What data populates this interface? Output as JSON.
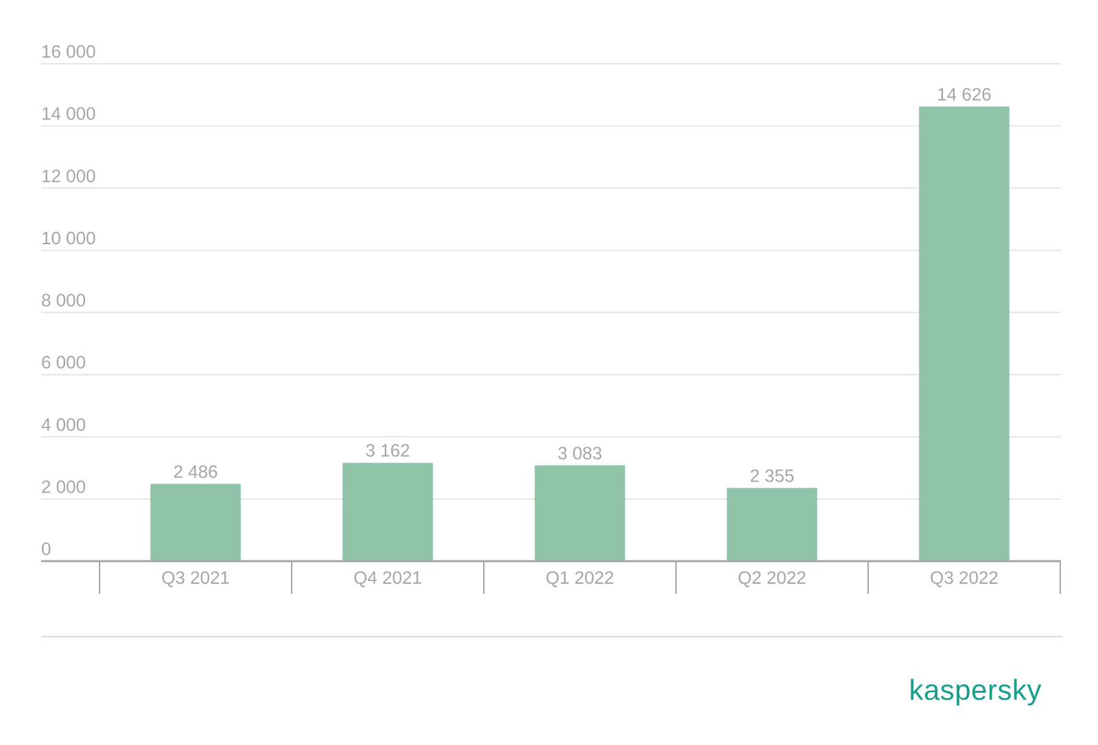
{
  "chart_data": {
    "type": "bar",
    "categories": [
      "Q3 2021",
      "Q4 2021",
      "Q1 2022",
      "Q2 2022",
      "Q3 2022"
    ],
    "values": [
      2486,
      3162,
      3083,
      2355,
      14626
    ],
    "value_labels": [
      "2 486",
      "3 162",
      "3 083",
      "2 355",
      "14 626"
    ],
    "y_ticks": [
      0,
      2000,
      4000,
      6000,
      8000,
      10000,
      12000,
      14000,
      16000
    ],
    "y_tick_labels": [
      "0",
      "2 000",
      "4 000",
      "6 000",
      "8 000",
      "10 000",
      "12 000",
      "14 000",
      "16 000"
    ],
    "ylim": [
      0,
      16000
    ],
    "grid": true,
    "legend": "none",
    "title": "",
    "xlabel": "",
    "ylabel": ""
  },
  "colors": {
    "bar": "#8fc4a8",
    "grid": "#e6e6e6",
    "axis": "#a6a6a6",
    "text": "#a6a6a6",
    "brand": "#1a9e8c"
  },
  "brand": {
    "logo_text": "kaspersky",
    "logo_icon": "kaspersky-wordmark"
  }
}
